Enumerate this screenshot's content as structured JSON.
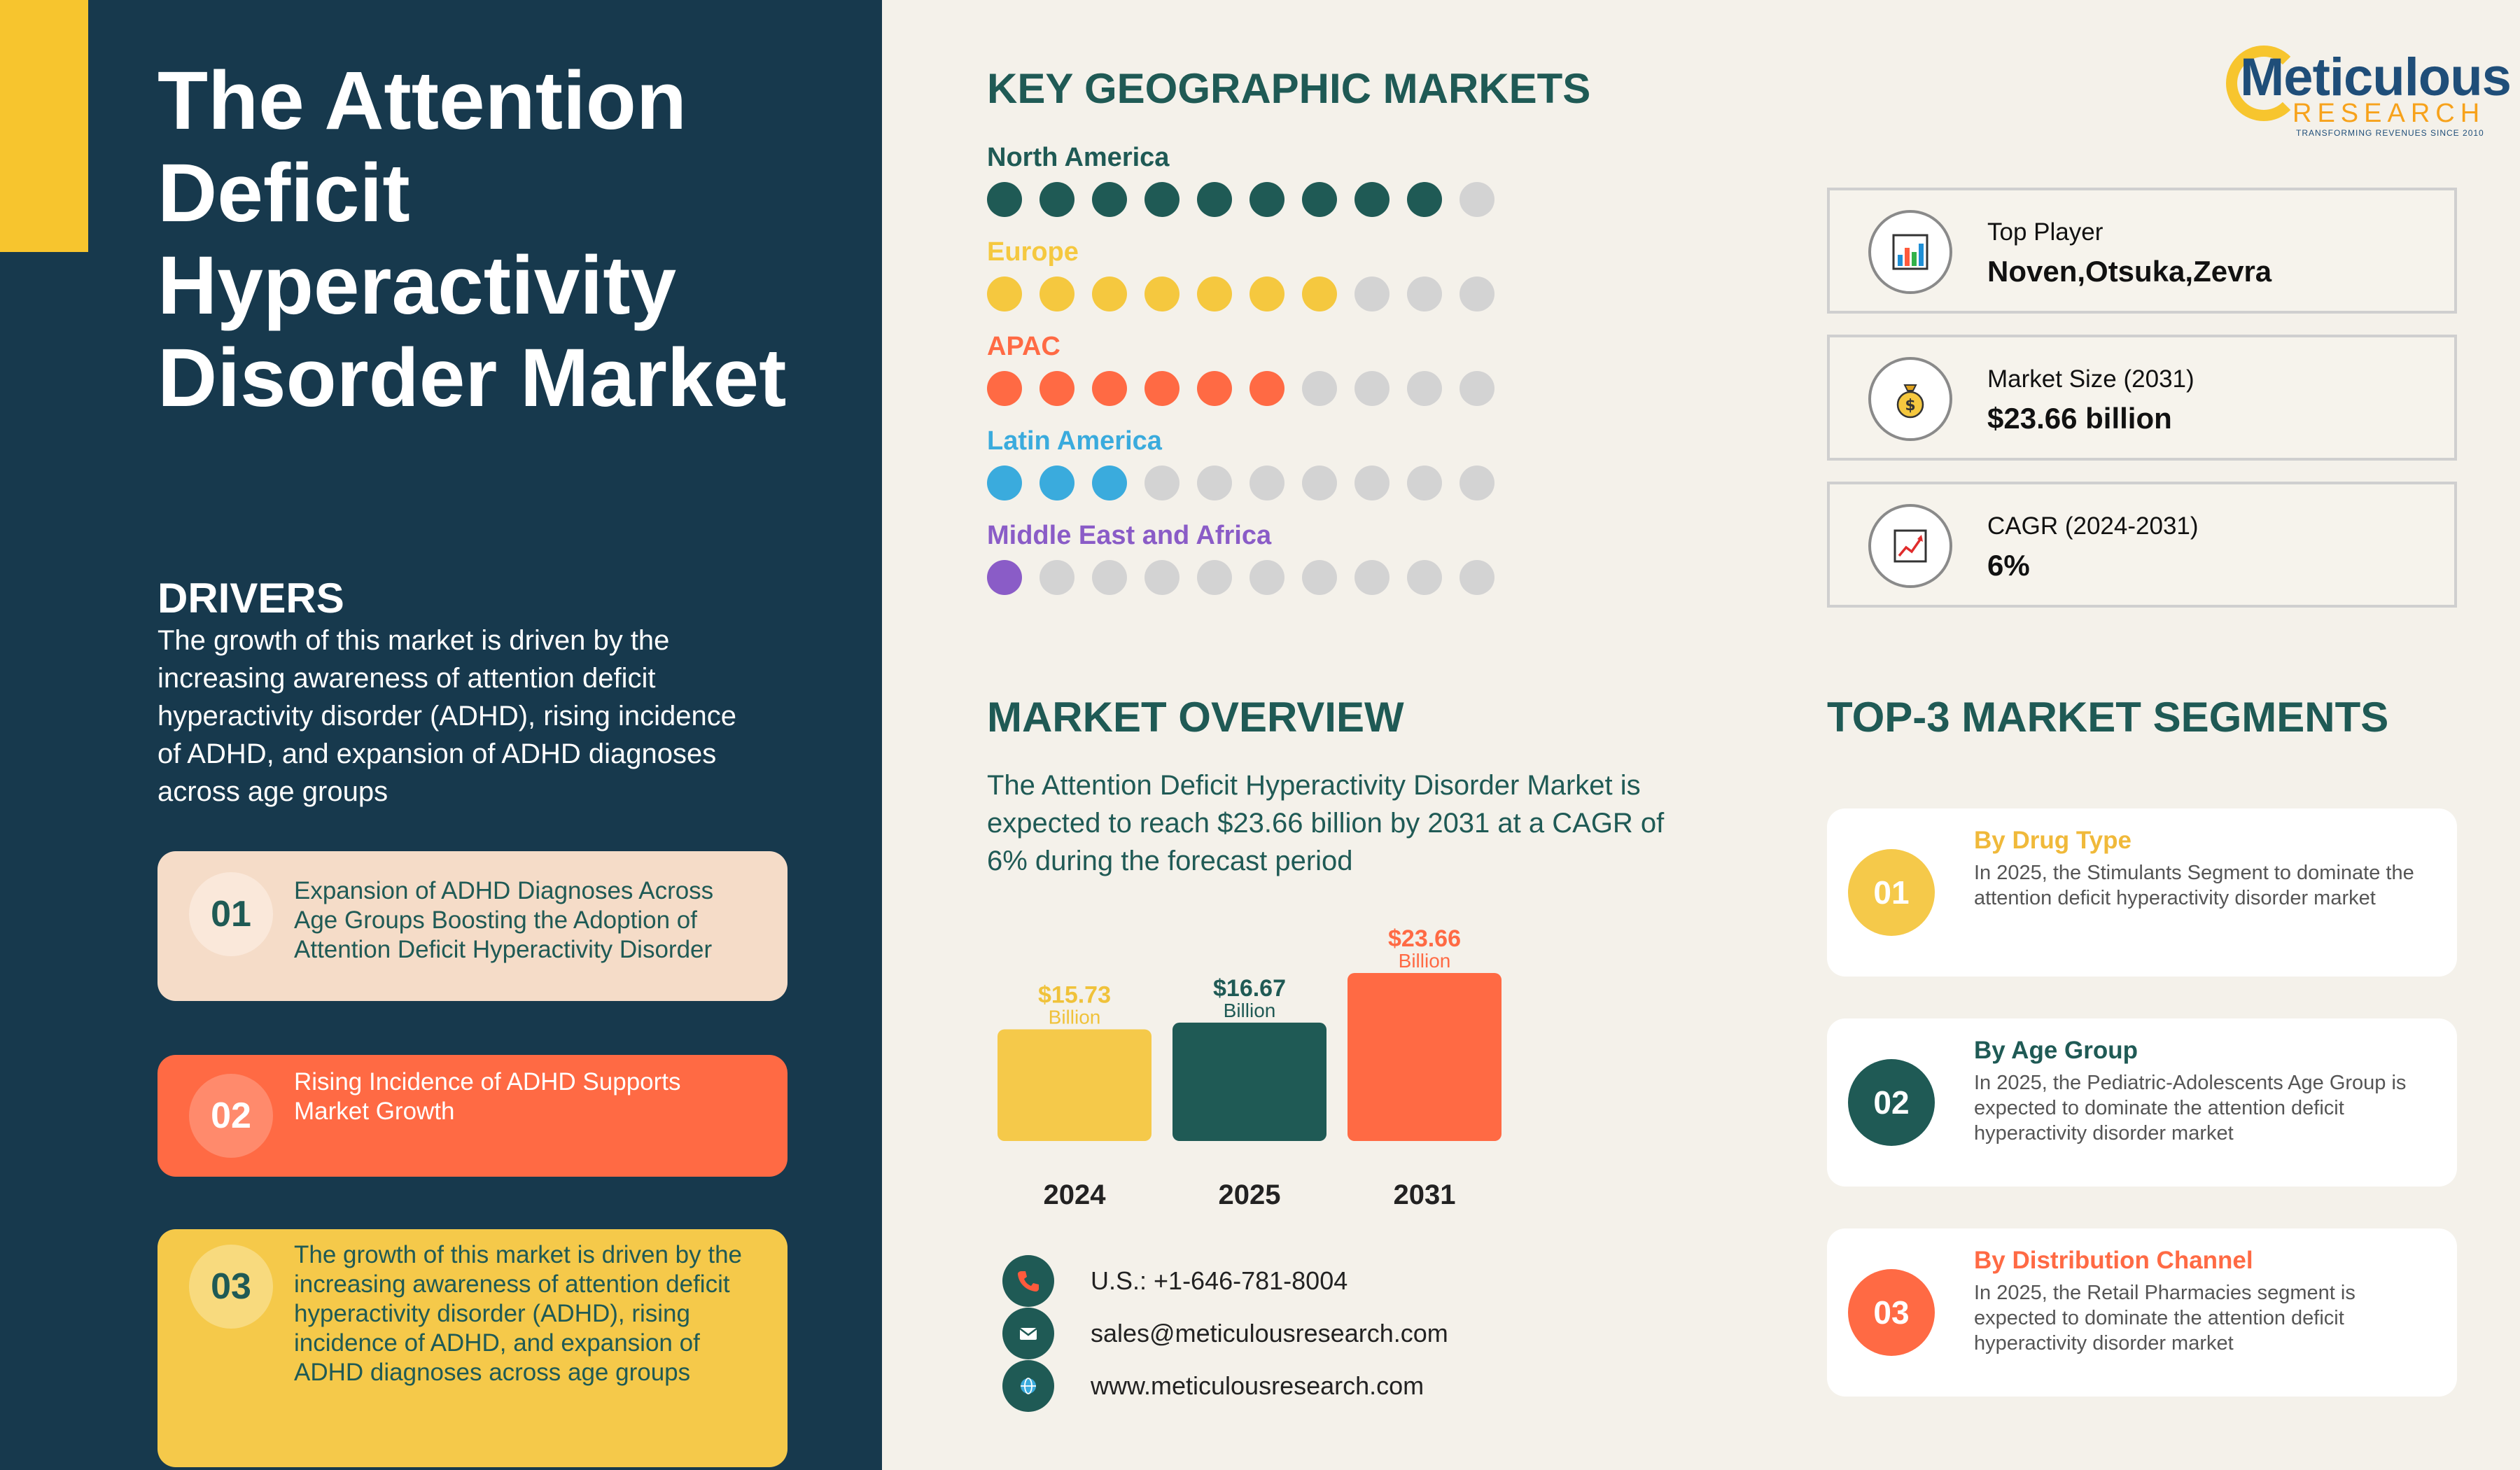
{
  "title": "The Attention Deficit Hyperactivity Disorder Market",
  "drivers": {
    "heading": "DRIVERS",
    "text": "The growth of this market is driven by the increasing awareness of attention deficit hyperactivity disorder (ADHD), rising incidence of ADHD, and expansion of ADHD diagnoses across age groups",
    "cards": [
      {
        "num": "01",
        "text": " Expansion of ADHD Diagnoses Across Age Groups Boosting the Adoption of Attention Deficit Hyperactivity Disorder"
      },
      {
        "num": "02",
        "text": "Rising Incidence of ADHD Supports Market Growth"
      },
      {
        "num": "03",
        "text": "The growth of this market is driven by the increasing awareness of attention deficit hyperactivity disorder (ADHD), rising incidence of ADHD, and expansion of ADHD diagnoses across age groups"
      }
    ]
  },
  "geo": {
    "heading": "KEY GEOGRAPHIC MARKETS",
    "total_dots": 10,
    "regions": [
      {
        "name": "North America",
        "filled": 9,
        "color": "#1f5a55"
      },
      {
        "name": "Europe",
        "filled": 7,
        "color": "#f5c83f"
      },
      {
        "name": "APAC",
        "filled": 6,
        "color": "#ff6a44"
      },
      {
        "name": "Latin America",
        "filled": 3,
        "color": "#3aabdd"
      },
      {
        "name": "Middle East and Africa",
        "filled": 1,
        "color": "#8a5cc7"
      }
    ]
  },
  "logo": {
    "main": "Meticulous",
    "sub": "RESEARCH",
    "tagline": "TRANSFORMING REVENUES SINCE 2010"
  },
  "stats": [
    {
      "label": "Top Player",
      "value": "Noven,Otsuka,Zevra",
      "icon": "bar-chart-icon"
    },
    {
      "label": "Market Size (2031)",
      "value": "$23.66 billion",
      "icon": "money-bag-icon"
    },
    {
      "label": "CAGR (2024-2031)",
      "value": "6%",
      "icon": "trend-chart-icon"
    }
  ],
  "overview": {
    "heading": "MARKET OVERVIEW",
    "text": "The Attention Deficit Hyperactivity Disorder Market is expected to reach $23.66 billion by 2031 at a CAGR of 6% during the forecast period"
  },
  "chart_data": {
    "type": "bar",
    "categories": [
      "2024",
      "2025",
      "2031"
    ],
    "values": [
      15.73,
      16.67,
      23.66
    ],
    "value_labels": [
      "$15.73",
      "$16.67",
      "$23.66"
    ],
    "unit_label": "Billion",
    "colors": [
      "#f5c94a",
      "#1f5a55",
      "#ff6a44"
    ]
  },
  "contacts": [
    {
      "text": "U.S.: +1-646-781-8004",
      "icon": "phone-icon"
    },
    {
      "text": "sales@meticulousresearch.com",
      "icon": "mail-icon"
    },
    {
      "text": "www.meticulousresearch.com",
      "icon": "globe-icon"
    }
  ],
  "segments": {
    "heading": "TOP-3 MARKET SEGMENTS",
    "items": [
      {
        "num": "01",
        "title": "By Drug Type",
        "desc": "In 2025, the Stimulants Segment to dominate the attention deficit hyperactivity disorder market",
        "color": "#f5c94a"
      },
      {
        "num": "02",
        "title": "By Age Group",
        "desc": "In 2025, the Pediatric-Adolescents Age Group is expected to dominate the attention deficit hyperactivity disorder market",
        "color": "#1f5a55"
      },
      {
        "num": "03",
        "title": "By Distribution Channel",
        "desc": "In 2025, the Retail Pharmacies segment is expected to dominate the attention deficit hyperactivity disorder market",
        "color": "#ff6a44"
      }
    ]
  }
}
